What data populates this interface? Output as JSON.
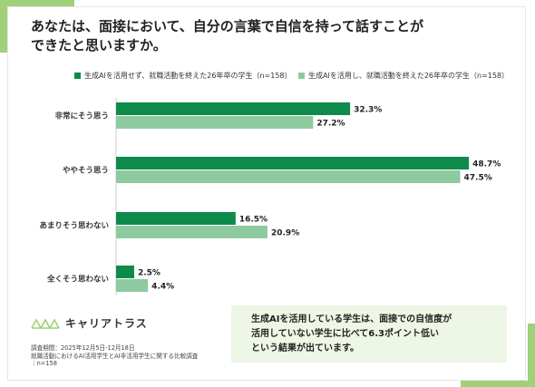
{
  "title": {
    "line1": "あなたは、面接において、自分の言葉で自信を持って話すことが",
    "line2": "できたと思いますか。"
  },
  "legend": {
    "items": [
      {
        "label": "生成AIを活用せず、就職活動を終えた26年卒の学生（n=158）",
        "color": "#0e8a4a"
      },
      {
        "label": "生成AIを活用し、就職活動を終えた26年卒の学生（n=158）",
        "color": "#8ecaa0"
      }
    ]
  },
  "chart_data": {
    "type": "bar",
    "orientation": "horizontal",
    "categories": [
      "非常にそう思う",
      "ややそう思う",
      "あまりそう思わない",
      "全くそう思わない"
    ],
    "series": [
      {
        "name": "生成AIを活用せず、就職活動を終えた26年卒の学生（n=158）",
        "color": "#0e8a4a",
        "values": [
          32.3,
          48.7,
          16.5,
          2.5
        ]
      },
      {
        "name": "生成AIを活用し、就職活動を終えた26年卒の学生（n=158）",
        "color": "#8ecaa0",
        "values": [
          27.2,
          47.5,
          20.9,
          4.4
        ]
      }
    ],
    "value_suffix": "%",
    "xlim": [
      0,
      50
    ],
    "grid": false
  },
  "logo": {
    "text": "キャリアトラス",
    "icon": "mountain-logo-icon"
  },
  "footnote": {
    "line1": "調査期間：2025年12月5日-12月18日",
    "line2": "就職活動におけるAI活用学生とAI非活用学生に関する比較調査",
    "line3": "｜n=158"
  },
  "callout": {
    "line1": "生成AIを活用している学生は、面接での自信度が",
    "line2": "活用していない学生に比べて6.3ポイント低い",
    "line3": "という結果が出ています。"
  }
}
